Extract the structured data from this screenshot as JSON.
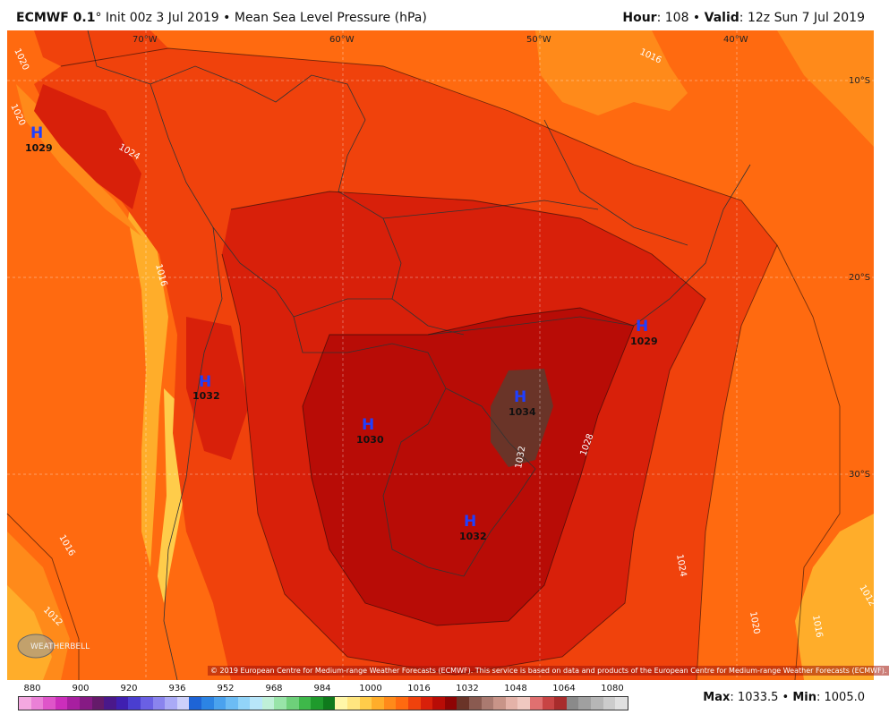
{
  "header": {
    "model": "ECMWF 0.1",
    "init_text": "° Init 00z 3 Jul 2019",
    "sep1": " • ",
    "field": "Mean Sea Level Pressure (hPa)",
    "hour_label": "Hour",
    "hour_value": ": 108",
    "sep2": " • ",
    "valid_label": "Valid",
    "valid_value": ": 12z Sun 7 Jul 2019"
  },
  "map": {
    "lon_labels": [
      "70°W",
      "60°W",
      "50°W",
      "40°W"
    ],
    "lat_labels": [
      "10°S",
      "20°S",
      "30°S"
    ],
    "highs": [
      {
        "symbol": "H",
        "value": "1029"
      },
      {
        "symbol": "H",
        "value": "1032"
      },
      {
        "symbol": "H",
        "value": "1030"
      },
      {
        "symbol": "H",
        "value": "1034"
      },
      {
        "symbol": "H",
        "value": "1032"
      },
      {
        "symbol": "H",
        "value": "1029"
      }
    ],
    "contour_labels": [
      "1020",
      "1020",
      "1024",
      "1016",
      "1016",
      "1016",
      "1012",
      "1028",
      "1032",
      "1024",
      "1020",
      "1016",
      "1012"
    ],
    "copyright": "© 2019 European Centre for Medium-range Weather Forecasts (ECMWF). This service is based on data and products of the European Centre for Medium-range Weather Forecasts (ECMWF).",
    "logo_text": "WEATHERBELL"
  },
  "legend": {
    "ticks": [
      "880",
      "900",
      "920",
      "936",
      "952",
      "968",
      "984",
      "1000",
      "1016",
      "1032",
      "1048",
      "1064",
      "1080"
    ],
    "colors": [
      "#f4a8e0",
      "#ea80d6",
      "#df55c9",
      "#cc2ebb",
      "#a81fa0",
      "#861a84",
      "#651a6a",
      "#4a188a",
      "#3f1fb0",
      "#4a3ed0",
      "#6a60e4",
      "#8a84ee",
      "#aaaaf6",
      "#cdd0fa",
      "#1e64d6",
      "#2c84e4",
      "#4aa2ee",
      "#6cbcf4",
      "#92d4f8",
      "#b8e6fa",
      "#bff0d8",
      "#98e4a8",
      "#6ed07a",
      "#3eb84a",
      "#1f9a2c",
      "#0f7a1c",
      "#fff7a8",
      "#ffe680",
      "#ffcc4a",
      "#ffad2a",
      "#ff8a1a",
      "#ff6a10",
      "#f0420c",
      "#d8200a",
      "#b80c06",
      "#8e0404",
      "#6a3428",
      "#8a5a50",
      "#aa7a70",
      "#c89488",
      "#e4b2a8",
      "#f0c8c0",
      "#e07070",
      "#c84444",
      "#a82c2c",
      "#8a8a8a",
      "#a0a0a0",
      "#b6b6b6",
      "#cccccc",
      "#e0e0e0"
    ]
  },
  "stats": {
    "max_label": "Max",
    "max_value": ": 1033.5",
    "sep": " • ",
    "min_label": "Min",
    "min_value": ": 1005.0"
  }
}
